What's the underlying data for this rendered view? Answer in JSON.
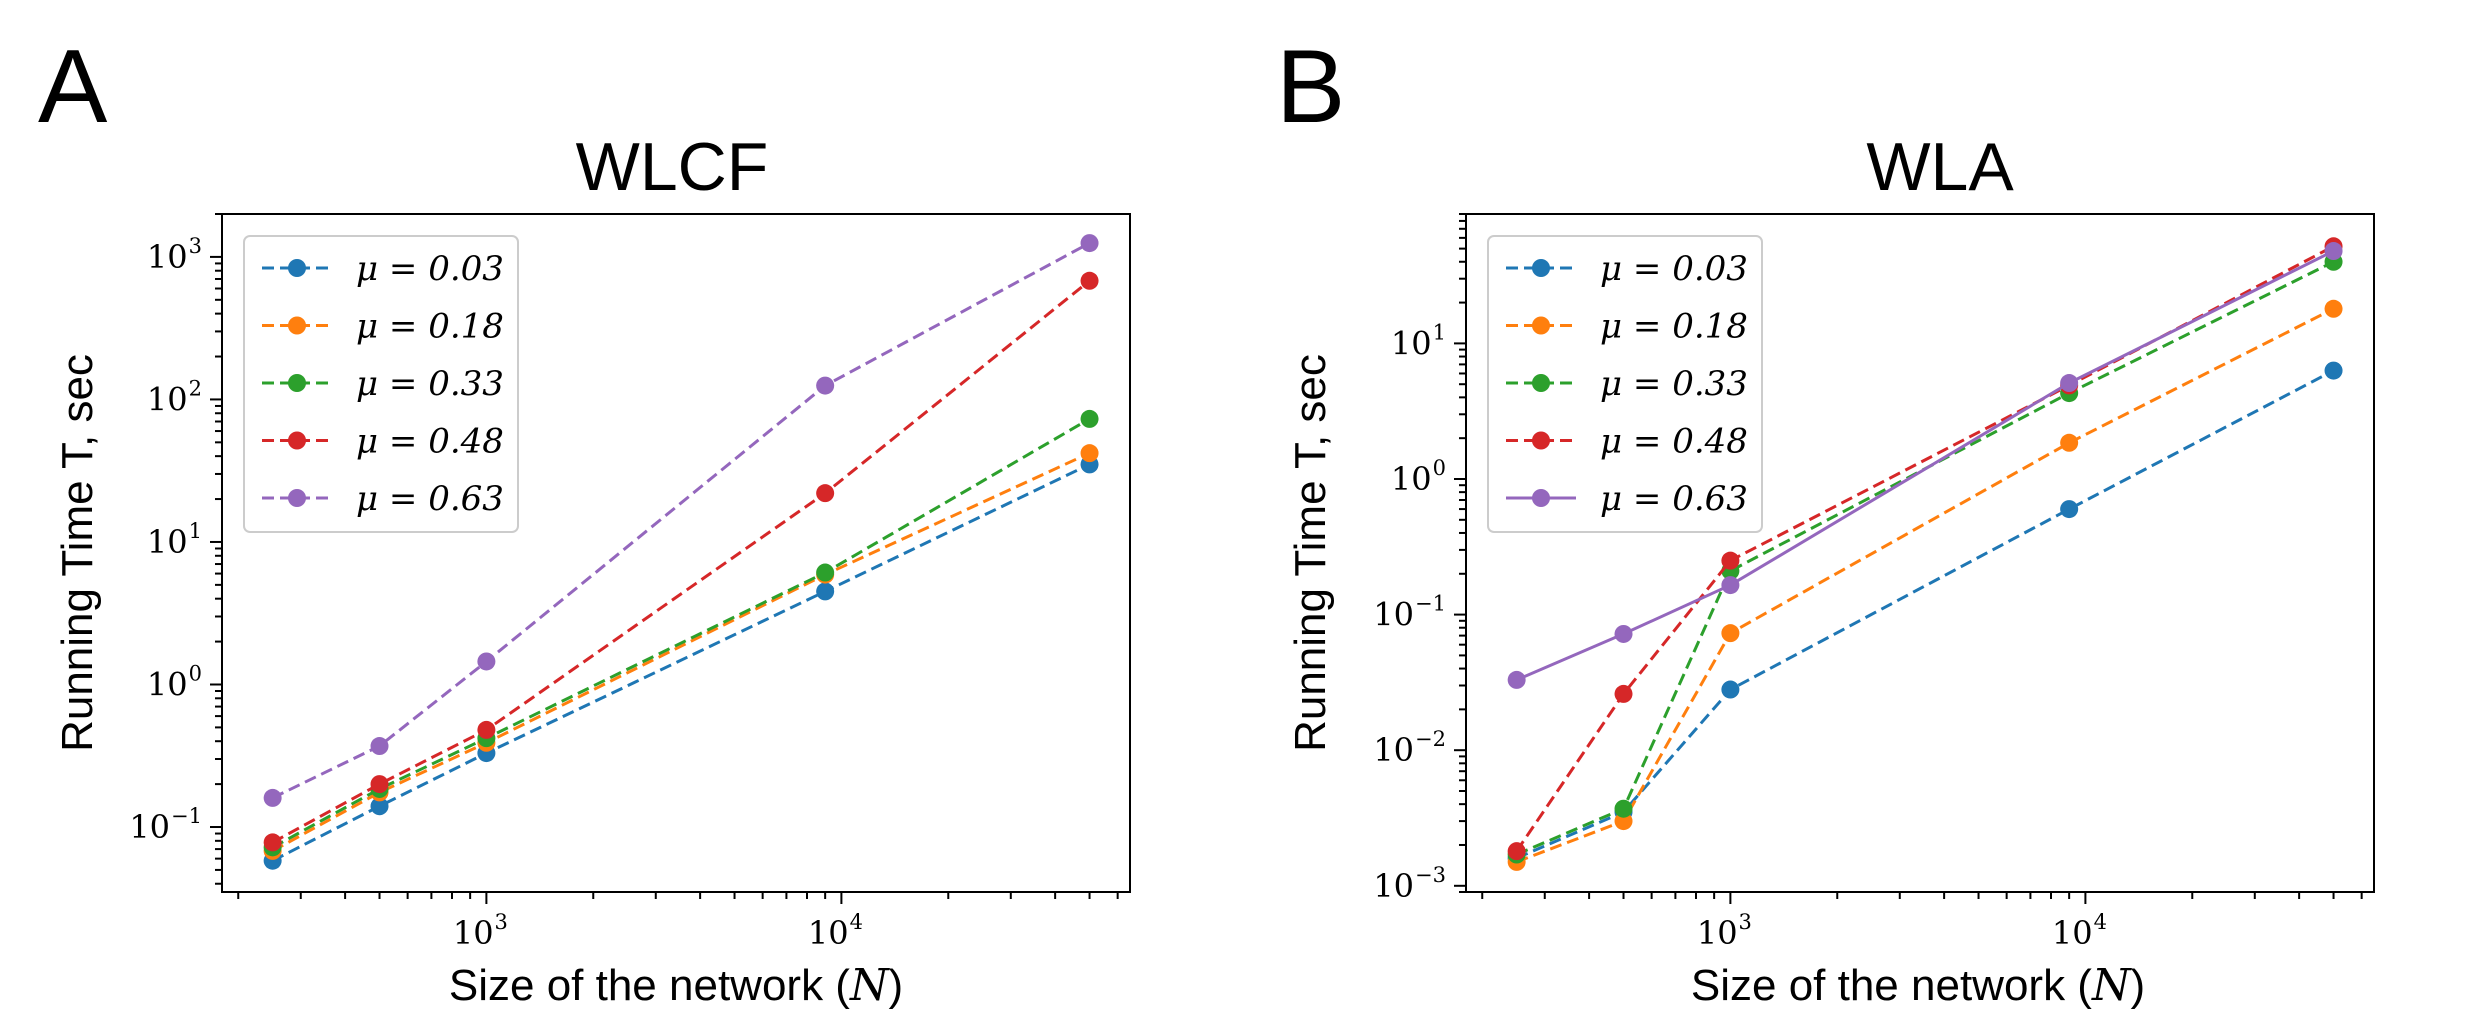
{
  "chart_data": [
    {
      "type": "line",
      "panel_label": "A",
      "title": "WLCF",
      "xlabel": "Size of the network (",
      "xlabel_var": "N",
      "xlabel_close": ")",
      "ylabel": "Running Time T, sec",
      "xscale": "log",
      "yscale": "log",
      "xlim": [
        180,
        65000
      ],
      "ylim": [
        0.035,
        2000
      ],
      "xticks": [
        {
          "base": "10",
          "exp": "3",
          "value": 1000
        },
        {
          "base": "10",
          "exp": "4",
          "value": 10000
        }
      ],
      "yticks": [
        {
          "base": "10",
          "exp": "−1",
          "value": 0.1
        },
        {
          "base": "10",
          "exp": "0",
          "value": 1
        },
        {
          "base": "10",
          "exp": "1",
          "value": 10
        },
        {
          "base": "10",
          "exp": "2",
          "value": 100
        },
        {
          "base": "10",
          "exp": "3",
          "value": 1000
        }
      ],
      "legend_position": "upper-left",
      "x": [
        250,
        500,
        1000,
        9000,
        50000
      ],
      "series": [
        {
          "name": "μ = 0.03",
          "color": "#1f77b4",
          "values": [
            0.058,
            0.14,
            0.33,
            4.5,
            35
          ]
        },
        {
          "name": "μ = 0.18",
          "color": "#ff7f0e",
          "values": [
            0.068,
            0.175,
            0.39,
            5.9,
            42
          ]
        },
        {
          "name": "μ = 0.33",
          "color": "#2ca02c",
          "values": [
            0.072,
            0.185,
            0.42,
            6.1,
            73
          ]
        },
        {
          "name": "μ = 0.48",
          "color": "#d62728",
          "values": [
            0.078,
            0.2,
            0.48,
            22,
            680
          ]
        },
        {
          "name": "μ = 0.63",
          "color": "#9467bd",
          "values": [
            0.16,
            0.37,
            1.45,
            125,
            1250
          ]
        }
      ]
    },
    {
      "type": "line",
      "panel_label": "B",
      "title": "WLA",
      "xlabel": "Size of the network (",
      "xlabel_var": "N",
      "xlabel_close": ")",
      "ylabel": "Running Time T, sec",
      "xscale": "log",
      "yscale": "log",
      "xlim": [
        180,
        65000
      ],
      "ylim": [
        0.0009,
        90
      ],
      "xticks": [
        {
          "base": "10",
          "exp": "3",
          "value": 1000
        },
        {
          "base": "10",
          "exp": "4",
          "value": 10000
        }
      ],
      "yticks": [
        {
          "base": "10",
          "exp": "−3",
          "value": 0.001
        },
        {
          "base": "10",
          "exp": "−2",
          "value": 0.01
        },
        {
          "base": "10",
          "exp": "−1",
          "value": 0.1
        },
        {
          "base": "10",
          "exp": "0",
          "value": 1
        },
        {
          "base": "10",
          "exp": "1",
          "value": 10
        }
      ],
      "legend_position": "upper-left",
      "x": [
        250,
        500,
        1000,
        9000,
        50000
      ],
      "series": [
        {
          "name": "μ = 0.03",
          "color": "#1f77b4",
          "values": [
            0.0016,
            0.0035,
            0.028,
            0.6,
            6.3
          ]
        },
        {
          "name": "μ = 0.18",
          "color": "#ff7f0e",
          "values": [
            0.0015,
            0.003,
            0.073,
            1.85,
            18
          ]
        },
        {
          "name": "μ = 0.33",
          "color": "#2ca02c",
          "values": [
            0.0017,
            0.0037,
            0.21,
            4.3,
            40
          ]
        },
        {
          "name": "μ = 0.48",
          "color": "#d62728",
          "values": [
            0.0018,
            0.026,
            0.25,
            4.9,
            52
          ]
        },
        {
          "name": "μ = 0.63",
          "color": "#9467bd",
          "values": [
            0.033,
            0.072,
            0.165,
            5.1,
            48
          ]
        }
      ]
    }
  ]
}
